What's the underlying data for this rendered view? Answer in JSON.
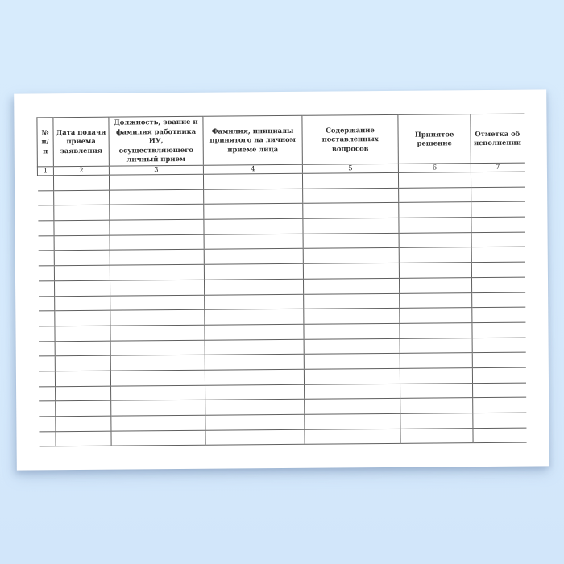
{
  "scene": {
    "background_top_color": "#d7ebfc",
    "background_mid_color": "#d6eafc",
    "background_bottom_color": "#d2e6fa",
    "paper_color": "#ffffff",
    "grid_line_color": "#5f5f5f",
    "text_color": "#303030"
  },
  "table": {
    "columns": [
      {
        "number": "1",
        "header": "№ п/п"
      },
      {
        "number": "2",
        "header": "Дата подачи приема заявления"
      },
      {
        "number": "3",
        "header": "Должность, звание и фамилия работника ИУ, осуществляющего личный прием"
      },
      {
        "number": "4",
        "header": "Фамилия, инициалы принятого на личном приеме лица"
      },
      {
        "number": "5",
        "header": "Содержание поставленных вопросов"
      },
      {
        "number": "6",
        "header": "Принятое решение"
      },
      {
        "number": "7",
        "header": "Отметка об исполнении"
      }
    ],
    "empty_body_rows": 18
  }
}
